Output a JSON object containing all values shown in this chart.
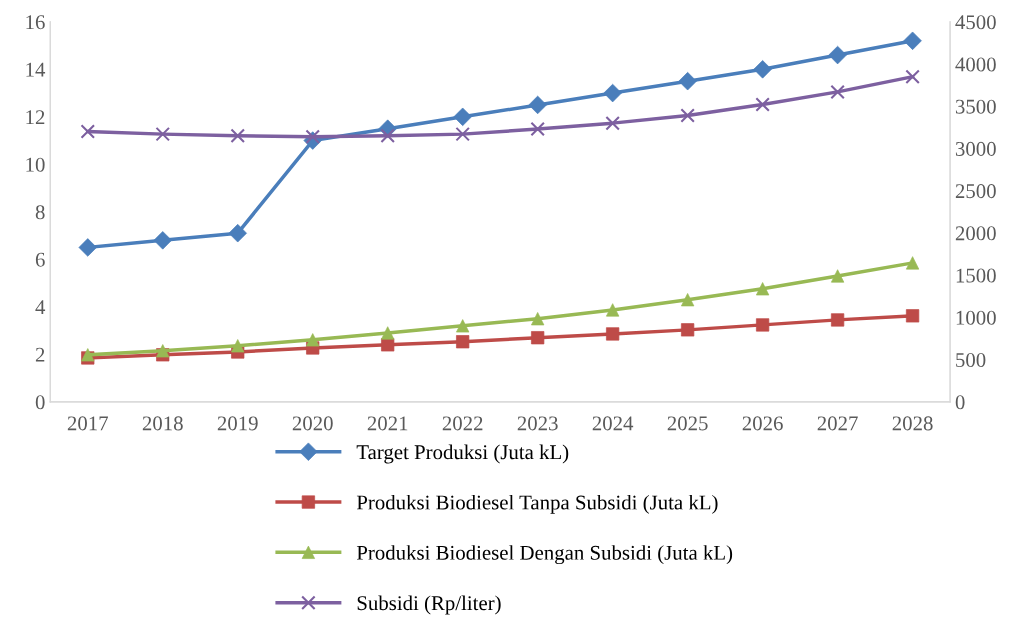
{
  "chart_data": {
    "type": "line",
    "categories": [
      "2017",
      "2018",
      "2019",
      "2020",
      "2021",
      "2022",
      "2023",
      "2024",
      "2025",
      "2026",
      "2027",
      "2028"
    ],
    "series": [
      {
        "name": "Target Produksi (Juta kL)",
        "color": "#4a7ebb",
        "marker": "diamond",
        "values": [
          6.5,
          6.8,
          7.1,
          11.0,
          11.5,
          12.0,
          12.5,
          13.0,
          13.5,
          14.0,
          14.6,
          15.2
        ]
      },
      {
        "name": "Produksi Biodiesel Tanpa Subsidi (Juta kL)",
        "color": "#be4b48",
        "marker": "square",
        "values": [
          1.85,
          1.98,
          2.1,
          2.27,
          2.4,
          2.53,
          2.7,
          2.86,
          3.03,
          3.24,
          3.45,
          3.62
        ]
      },
      {
        "name": "Produksi Biodiesel Dengan Subsidi (Juta kL)",
        "color": "#98b954",
        "marker": "triangle",
        "values": [
          1.98,
          2.15,
          2.36,
          2.61,
          2.9,
          3.2,
          3.5,
          3.87,
          4.3,
          4.76,
          5.3,
          5.85
        ]
      },
      {
        "name": "Subsidi (Rp/liter)",
        "color": "#7d60a0",
        "marker": "cross",
        "axis": "y2",
        "values": [
          3200,
          3170,
          3150,
          3140,
          3150,
          3170,
          3230,
          3300,
          3390,
          3520,
          3670,
          3850
        ]
      }
    ],
    "ylim": [
      0,
      16
    ],
    "yticks": [
      0,
      2,
      4,
      6,
      8,
      10,
      12,
      14,
      16
    ],
    "y2lim": [
      0,
      4500
    ],
    "y2ticks": [
      0,
      500,
      1000,
      1500,
      2000,
      2500,
      3000,
      3500,
      4000,
      4500
    ],
    "grid": false,
    "legend": "bottom",
    "line_style": "solid"
  }
}
